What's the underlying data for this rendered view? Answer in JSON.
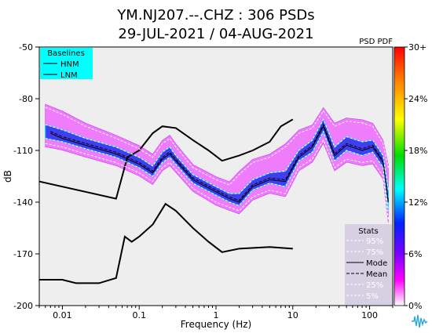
{
  "chart_data": {
    "type": "line",
    "title_line1": "YM.NJ207.--.CHZ : 306 PSDs",
    "title_line2": "29-JUL-2021 / 04-AUG-2021",
    "xlabel": "Frequency (Hz)",
    "ylabel": "dB",
    "x_scale": "log",
    "xlim": [
      0.005,
      200
    ],
    "ylim": [
      -200,
      -50
    ],
    "x_ticks": [
      {
        "value": 0.01,
        "label": "0.01"
      },
      {
        "value": 0.1,
        "label": "0.1"
      },
      {
        "value": 1,
        "label": "1"
      },
      {
        "value": 10,
        "label": "10"
      },
      {
        "value": 100,
        "label": "100"
      }
    ],
    "y_ticks": [
      -50,
      -80,
      -110,
      -140,
      -170,
      -200
    ],
    "grid": false,
    "background": "#eeeeee",
    "pdf_label": "PSD PDF",
    "colorbar_ticks": [
      "30+",
      "24%",
      "18%",
      "12%",
      "6%",
      "0%"
    ],
    "colorbar_colors": [
      "#ff0000",
      "#ff8800",
      "#ffff00",
      "#00dd00",
      "#00ffff",
      "#0000ff",
      "#8800ff",
      "#ff00ff",
      "#ffffff"
    ],
    "baselines": {
      "title": "Baselines",
      "items": [
        "HNM",
        "LNM"
      ],
      "background": "#00ffff"
    },
    "stats": {
      "title": "Stats",
      "items": [
        "95%",
        "75%",
        "Mode",
        "Mean",
        "25%",
        "5%"
      ],
      "background": "#d6d0e2"
    },
    "series": [
      {
        "name": "HNM",
        "x": [
          0.005,
          0.05,
          0.07,
          0.1,
          0.15,
          0.2,
          0.3,
          0.5,
          0.8,
          1.2,
          2,
          3,
          5,
          7,
          10
        ],
        "y": [
          -128,
          -138,
          -114,
          -110,
          -100,
          -96,
          -97,
          -104,
          -110,
          -116,
          -113,
          -110,
          -105,
          -96,
          -92
        ]
      },
      {
        "name": "LNM",
        "x": [
          0.005,
          0.01,
          0.015,
          0.03,
          0.05,
          0.065,
          0.08,
          0.1,
          0.15,
          0.22,
          0.3,
          0.5,
          0.8,
          1.2,
          2,
          5,
          10
        ],
        "y": [
          -185,
          -185,
          -187,
          -187,
          -184,
          -160,
          -163,
          -160,
          -153,
          -141,
          -145,
          -155,
          -163,
          -169,
          -167,
          -166,
          -167
        ]
      },
      {
        "name": "Mode",
        "x": [
          0.007,
          0.01,
          0.02,
          0.05,
          0.1,
          0.15,
          0.2,
          0.25,
          0.3,
          0.5,
          1,
          1.5,
          2,
          3,
          5,
          8,
          12,
          18,
          25,
          35,
          50,
          80,
          110,
          150,
          175
        ],
        "y": [
          -100,
          -103,
          -107,
          -112,
          -118,
          -123,
          -115,
          -112,
          -116,
          -127,
          -134,
          -138,
          -140,
          -131,
          -127,
          -128,
          -114,
          -108,
          -96,
          -113,
          -107,
          -110,
          -108,
          -117,
          -140
        ]
      },
      {
        "name": "Mean",
        "x": [
          0.007,
          0.01,
          0.02,
          0.05,
          0.1,
          0.15,
          0.2,
          0.25,
          0.3,
          0.5,
          1,
          1.5,
          2,
          3,
          5,
          8,
          12,
          18,
          25,
          35,
          50,
          80,
          110,
          150,
          175
        ],
        "y": [
          -99,
          -102,
          -106,
          -111,
          -117,
          -122,
          -114,
          -111,
          -115,
          -126,
          -133,
          -137,
          -139,
          -130,
          -126,
          -127,
          -113,
          -107,
          -95,
          -112,
          -106,
          -109,
          -107,
          -116,
          -139
        ]
      },
      {
        "name": "95%",
        "x": [
          0.006,
          0.01,
          0.02,
          0.05,
          0.1,
          0.15,
          0.2,
          0.25,
          0.3,
          0.5,
          1,
          1.5,
          2,
          3,
          5,
          8,
          12,
          18,
          25,
          35,
          50,
          80,
          110,
          150,
          175
        ],
        "y": [
          -85,
          -89,
          -96,
          -103,
          -109,
          -114,
          -106,
          -103,
          -108,
          -120,
          -127,
          -130,
          -124,
          -117,
          -114,
          -108,
          -100,
          -97,
          -87,
          -96,
          -93,
          -94,
          -96,
          -106,
          -120
        ]
      },
      {
        "name": "75%",
        "x": [
          0.006,
          0.01,
          0.02,
          0.05,
          0.1,
          0.15,
          0.2,
          0.25,
          0.3,
          0.5,
          1,
          1.5,
          2,
          3,
          5,
          8,
          12,
          18,
          25,
          35,
          50,
          80,
          110,
          150,
          175
        ],
        "y": [
          -95,
          -98,
          -103,
          -108,
          -114,
          -119,
          -111,
          -108,
          -113,
          -124,
          -131,
          -135,
          -135,
          -127,
          -123,
          -122,
          -110,
          -104,
          -92,
          -108,
          -102,
          -105,
          -104,
          -113,
          -133
        ]
      },
      {
        "name": "25%",
        "x": [
          0.006,
          0.01,
          0.02,
          0.05,
          0.1,
          0.15,
          0.2,
          0.25,
          0.3,
          0.5,
          1,
          1.5,
          2,
          3,
          5,
          8,
          12,
          18,
          25,
          35,
          50,
          80,
          110,
          150,
          175
        ],
        "y": [
          -103,
          -105,
          -109,
          -114,
          -120,
          -125,
          -117,
          -114,
          -118,
          -129,
          -136,
          -140,
          -142,
          -133,
          -129,
          -131,
          -116,
          -111,
          -99,
          -116,
          -110,
          -113,
          -111,
          -120,
          -145
        ]
      },
      {
        "name": "5%",
        "x": [
          0.006,
          0.01,
          0.02,
          0.05,
          0.1,
          0.15,
          0.2,
          0.25,
          0.3,
          0.5,
          1,
          1.5,
          2,
          3,
          5,
          8,
          12,
          18,
          25,
          35,
          50,
          80,
          110,
          150,
          175
        ],
        "y": [
          -106,
          -108,
          -112,
          -117,
          -123,
          -128,
          -120,
          -117,
          -121,
          -132,
          -140,
          -143,
          -145,
          -137,
          -133,
          -135,
          -120,
          -115,
          -104,
          -120,
          -115,
          -117,
          -116,
          -125,
          -150
        ]
      }
    ]
  }
}
